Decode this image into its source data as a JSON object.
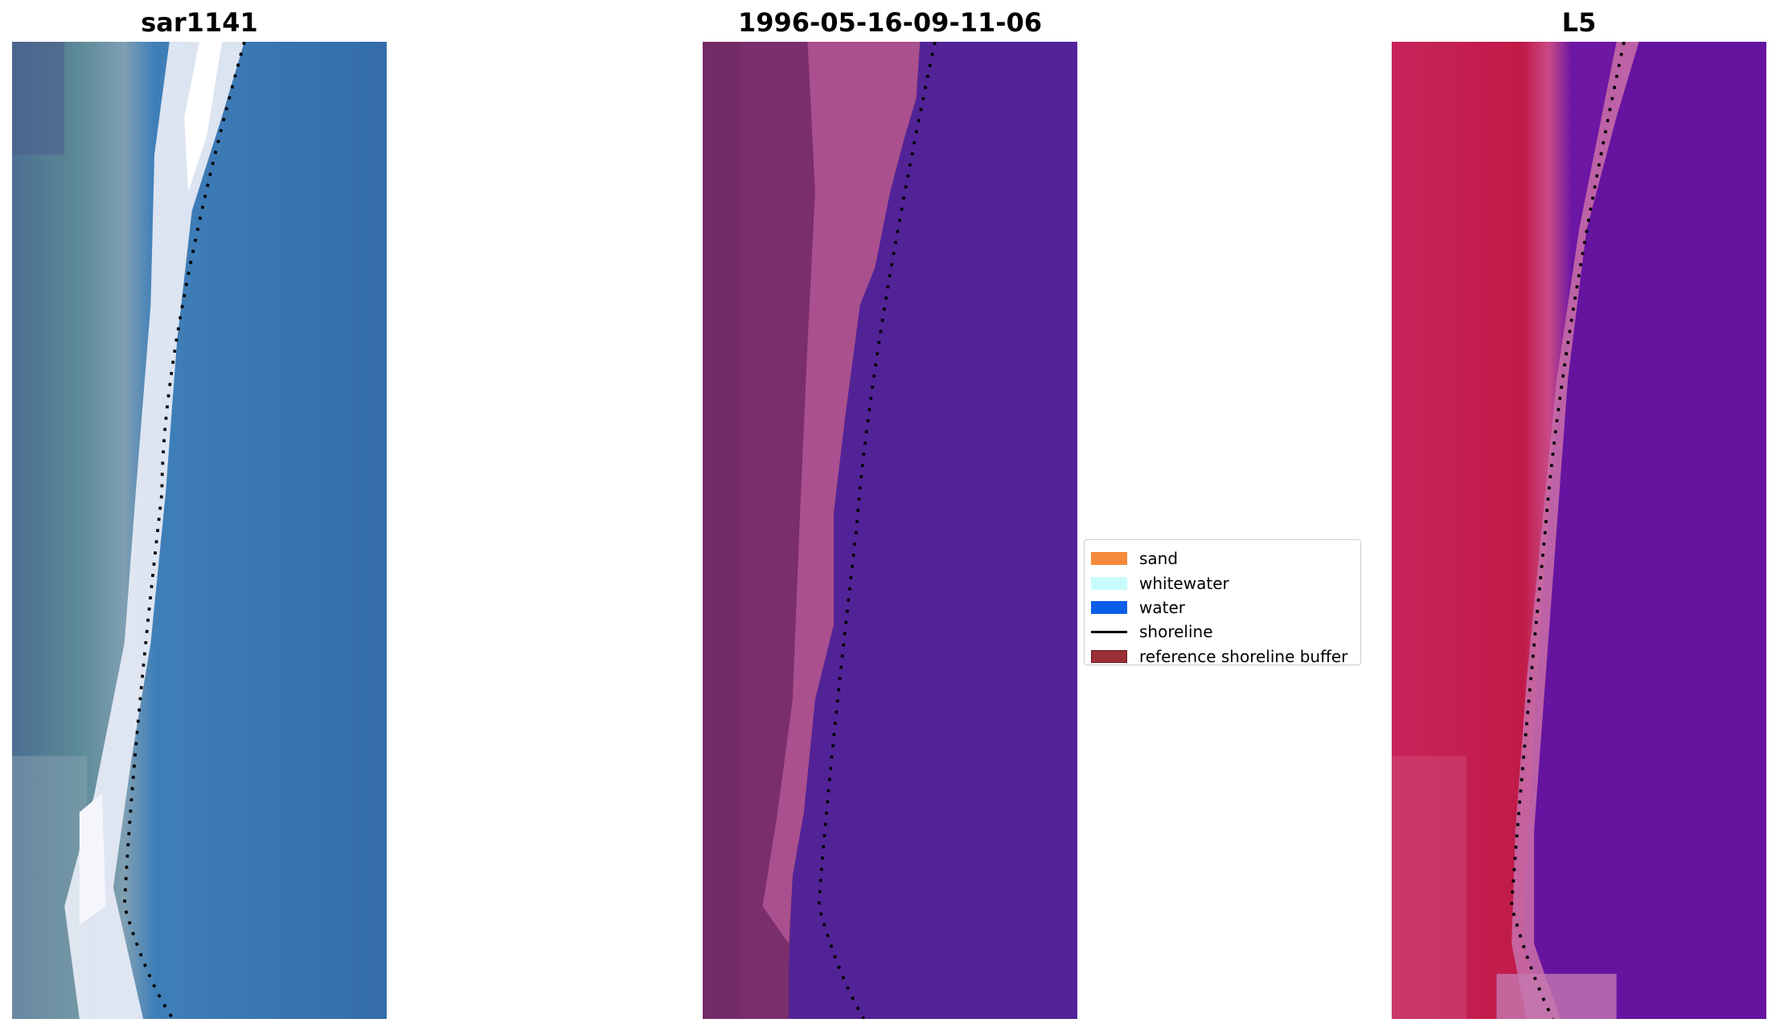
{
  "panels": [
    {
      "title": "sar1141"
    },
    {
      "title": "1996-05-16-09-11-06"
    },
    {
      "title": "L5"
    }
  ],
  "legend": {
    "items": [
      {
        "label": "sand",
        "color": "#f58a3a"
      },
      {
        "label": "whitewater",
        "color": "#c8fcfc"
      },
      {
        "label": "water",
        "color": "#0b5ee8"
      },
      {
        "label": "shoreline",
        "color": "#000000"
      },
      {
        "label": "reference shoreline buffer",
        "color": "#9a2f36"
      }
    ]
  }
}
